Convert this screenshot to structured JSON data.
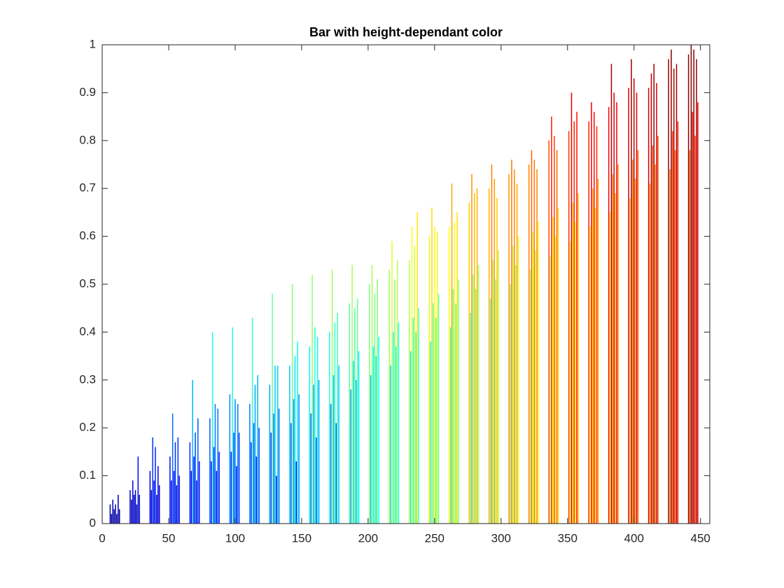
{
  "chart_data": {
    "type": "bar",
    "title": "Bar with height-dependant color",
    "colormap": "jet",
    "x": [
      6,
      7,
      8,
      9,
      10,
      11,
      12,
      13,
      21,
      22,
      23,
      24,
      25,
      26,
      27,
      28,
      36,
      37,
      38,
      39,
      40,
      41,
      42,
      43,
      51,
      52,
      53,
      54,
      55,
      56,
      57,
      58,
      66,
      67,
      68,
      69,
      70,
      71,
      72,
      73,
      81,
      82,
      83,
      84,
      85,
      86,
      87,
      88,
      96,
      97,
      98,
      99,
      100,
      101,
      102,
      103,
      111,
      112,
      113,
      114,
      115,
      116,
      117,
      118,
      126,
      127,
      128,
      129,
      130,
      131,
      132,
      133,
      141,
      142,
      143,
      144,
      145,
      146,
      147,
      148,
      156,
      157,
      158,
      159,
      160,
      161,
      162,
      163,
      171,
      172,
      173,
      174,
      175,
      176,
      177,
      178,
      186,
      187,
      188,
      189,
      190,
      191,
      192,
      193,
      201,
      202,
      203,
      204,
      205,
      206,
      207,
      208,
      216,
      217,
      218,
      219,
      220,
      221,
      222,
      223,
      231,
      232,
      233,
      234,
      235,
      236,
      237,
      238,
      246,
      247,
      248,
      249,
      250,
      251,
      252,
      253,
      261,
      262,
      263,
      264,
      265,
      266,
      267,
      268,
      276,
      277,
      278,
      279,
      280,
      281,
      282,
      283,
      291,
      292,
      293,
      294,
      295,
      296,
      297,
      298,
      306,
      307,
      308,
      309,
      310,
      311,
      312,
      313,
      321,
      322,
      323,
      324,
      325,
      326,
      327,
      328,
      336,
      337,
      338,
      339,
      340,
      341,
      342,
      343,
      351,
      352,
      353,
      354,
      355,
      356,
      357,
      358,
      366,
      367,
      368,
      369,
      370,
      371,
      372,
      373,
      381,
      382,
      383,
      384,
      385,
      386,
      387,
      388,
      396,
      397,
      398,
      399,
      400,
      401,
      402,
      403,
      411,
      412,
      413,
      414,
      415,
      416,
      417,
      418,
      426,
      427,
      428,
      429,
      430,
      431,
      432,
      433,
      441,
      442,
      443,
      444,
      445,
      446,
      447,
      448
    ],
    "values": [
      0.04,
      0.02,
      0.05,
      0.03,
      0.04,
      0.02,
      0.06,
      0.03,
      0.07,
      0.05,
      0.09,
      0.06,
      0.07,
      0.04,
      0.14,
      0.06,
      0.11,
      0.07,
      0.18,
      0.09,
      0.16,
      0.06,
      0.12,
      0.08,
      0.14,
      0.09,
      0.23,
      0.11,
      0.17,
      0.08,
      0.18,
      0.1,
      0.17,
      0.11,
      0.3,
      0.14,
      0.19,
      0.09,
      0.22,
      0.13,
      0.22,
      0.13,
      0.4,
      0.16,
      0.25,
      0.11,
      0.24,
      0.15,
      0.27,
      0.15,
      0.41,
      0.19,
      0.26,
      0.12,
      0.25,
      0.19,
      0.25,
      0.17,
      0.43,
      0.21,
      0.29,
      0.14,
      0.31,
      0.2,
      0.29,
      0.19,
      0.48,
      0.23,
      0.33,
      0.1,
      0.33,
      0.24,
      0.33,
      0.21,
      0.5,
      0.26,
      0.35,
      0.13,
      0.38,
      0.27,
      0.37,
      0.23,
      0.52,
      0.29,
      0.41,
      0.18,
      0.39,
      0.3,
      0.4,
      0.25,
      0.53,
      0.31,
      0.42,
      0.21,
      0.44,
      0.33,
      0.46,
      0.28,
      0.54,
      0.34,
      0.45,
      0.3,
      0.47,
      0.36,
      0.5,
      0.31,
      0.54,
      0.37,
      0.48,
      0.35,
      0.51,
      0.39,
      0.53,
      0.33,
      0.59,
      0.4,
      0.51,
      0.37,
      0.55,
      0.42,
      0.55,
      0.36,
      0.62,
      0.43,
      0.58,
      0.4,
      0.65,
      0.45,
      0.6,
      0.38,
      0.66,
      0.46,
      0.62,
      0.43,
      0.61,
      0.48,
      0.62,
      0.41,
      0.71,
      0.49,
      0.63,
      0.46,
      0.65,
      0.51,
      0.67,
      0.44,
      0.73,
      0.52,
      0.69,
      0.49,
      0.7,
      0.54,
      0.7,
      0.47,
      0.75,
      0.55,
      0.72,
      0.51,
      0.68,
      0.57,
      0.73,
      0.5,
      0.76,
      0.58,
      0.74,
      0.54,
      0.71,
      0.6,
      0.75,
      0.53,
      0.78,
      0.61,
      0.76,
      0.57,
      0.74,
      0.63,
      0.8,
      0.56,
      0.85,
      0.64,
      0.81,
      0.6,
      0.78,
      0.66,
      0.82,
      0.59,
      0.9,
      0.67,
      0.84,
      0.63,
      0.86,
      0.69,
      0.84,
      0.62,
      0.88,
      0.7,
      0.86,
      0.66,
      0.83,
      0.72,
      0.87,
      0.65,
      0.96,
      0.73,
      0.9,
      0.69,
      0.88,
      0.75,
      0.91,
      0.68,
      0.97,
      0.76,
      0.93,
      0.72,
      0.9,
      0.78,
      0.91,
      0.71,
      0.94,
      0.79,
      0.96,
      0.75,
      0.92,
      0.81,
      0.97,
      0.74,
      0.99,
      0.82,
      0.95,
      0.78,
      0.96,
      0.84,
      0.98,
      0.78,
      1,
      0.86,
      0.99,
      0.81,
      0.97,
      0.88
    ],
    "xlim": [
      0,
      457
    ],
    "xticks": [
      0,
      50,
      100,
      150,
      200,
      250,
      300,
      350,
      400,
      450
    ],
    "ylim": [
      0,
      1
    ],
    "yticks": [
      0,
      0.1,
      0.2,
      0.3,
      0.4,
      0.5,
      0.6,
      0.7,
      0.8,
      0.9,
      1
    ]
  }
}
